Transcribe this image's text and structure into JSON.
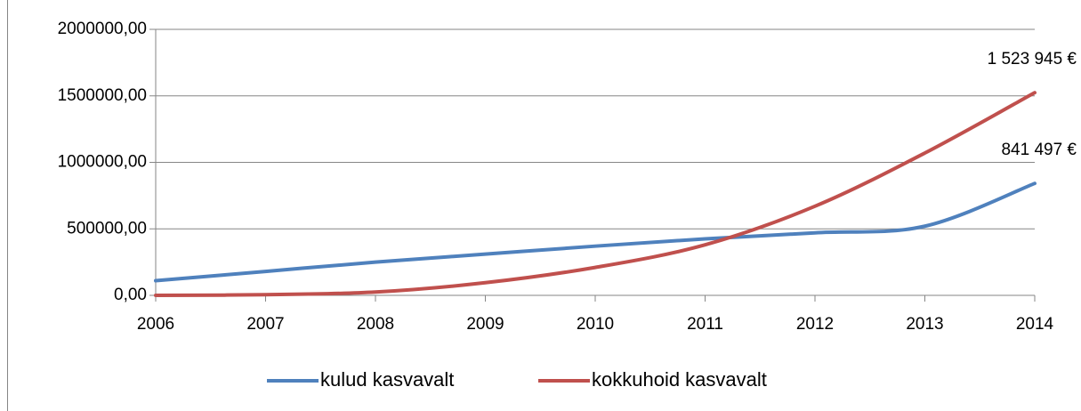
{
  "chart_data": {
    "type": "line",
    "x": [
      2006,
      2007,
      2008,
      2009,
      2010,
      2011,
      2012,
      2013,
      2014
    ],
    "series": [
      {
        "name": "kulud kasvavalt",
        "color": "#4f81bd",
        "values": [
          110000,
          180000,
          250000,
          310000,
          370000,
          425000,
          470000,
          520000,
          841497
        ],
        "value_labels": [
          null,
          null,
          null,
          null,
          null,
          null,
          null,
          null,
          "841 497 €"
        ]
      },
      {
        "name": "kokkuhoid kasvavalt",
        "color": "#c0504d",
        "values": [
          0,
          5000,
          25000,
          95000,
          210000,
          380000,
          670000,
          1070000,
          1523945
        ],
        "value_labels": [
          null,
          null,
          null,
          null,
          null,
          null,
          null,
          null,
          "1 523 945 €"
        ]
      }
    ],
    "xlim": [
      2006,
      2014
    ],
    "xticks": [
      2006,
      2007,
      2008,
      2009,
      2010,
      2011,
      2012,
      2013,
      2014
    ],
    "ylim": [
      0,
      2000000
    ],
    "yticks": [
      {
        "value": 0,
        "label": "0,00"
      },
      {
        "value": 500000,
        "label": "500000,00"
      },
      {
        "value": 1000000,
        "label": "1000000,00"
      },
      {
        "value": 1500000,
        "label": "1500000,00"
      },
      {
        "value": 2000000,
        "label": "2000000,00"
      }
    ],
    "grid": true,
    "legend": "bottom"
  }
}
